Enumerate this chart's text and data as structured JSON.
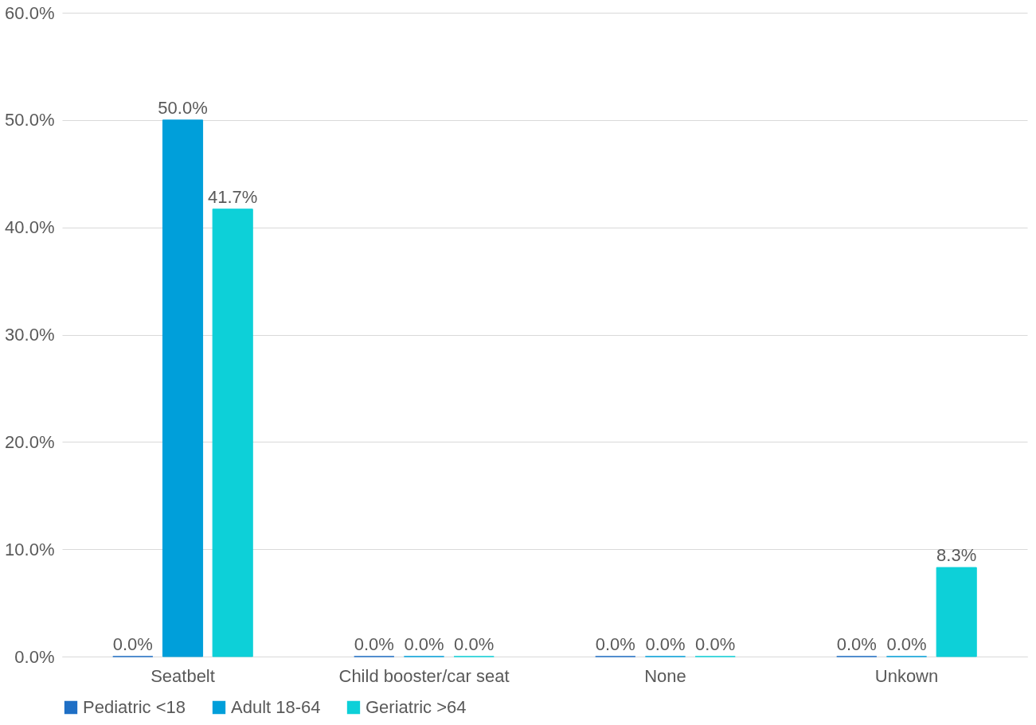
{
  "chart_data": {
    "type": "bar",
    "categories": [
      "Seatbelt",
      "Child booster/car seat",
      "None",
      "Unkown"
    ],
    "series": [
      {
        "name": "Pediatric <18",
        "color": "#1f6fc5",
        "values": [
          0,
          0,
          0,
          0
        ],
        "value_labels": [
          "0.0%",
          "0.0%",
          "0.0%",
          "0.0%"
        ]
      },
      {
        "name": "Adult 18-64",
        "color": "#009fda",
        "values": [
          50,
          0,
          0,
          0
        ],
        "value_labels": [
          "50.0%",
          "0.0%",
          "0.0%",
          "0.0%"
        ]
      },
      {
        "name": "Geriatric >64",
        "color": "#0dd0d8",
        "values": [
          41.7,
          0,
          0,
          8.3
        ],
        "value_labels": [
          "41.7%",
          "0.0%",
          "0.0%",
          "8.3%"
        ]
      }
    ],
    "ylim": [
      0,
      60
    ],
    "yticks": [
      {
        "value": 0,
        "label": "0.0%"
      },
      {
        "value": 10,
        "label": "10.0%"
      },
      {
        "value": 20,
        "label": "20.0%"
      },
      {
        "value": 30,
        "label": "30.0%"
      },
      {
        "value": 40,
        "label": "40.0%"
      },
      {
        "value": 50,
        "label": "50.0%"
      },
      {
        "value": 60,
        "label": "60.0%"
      }
    ],
    "grid": "y",
    "legend": "bottom"
  }
}
